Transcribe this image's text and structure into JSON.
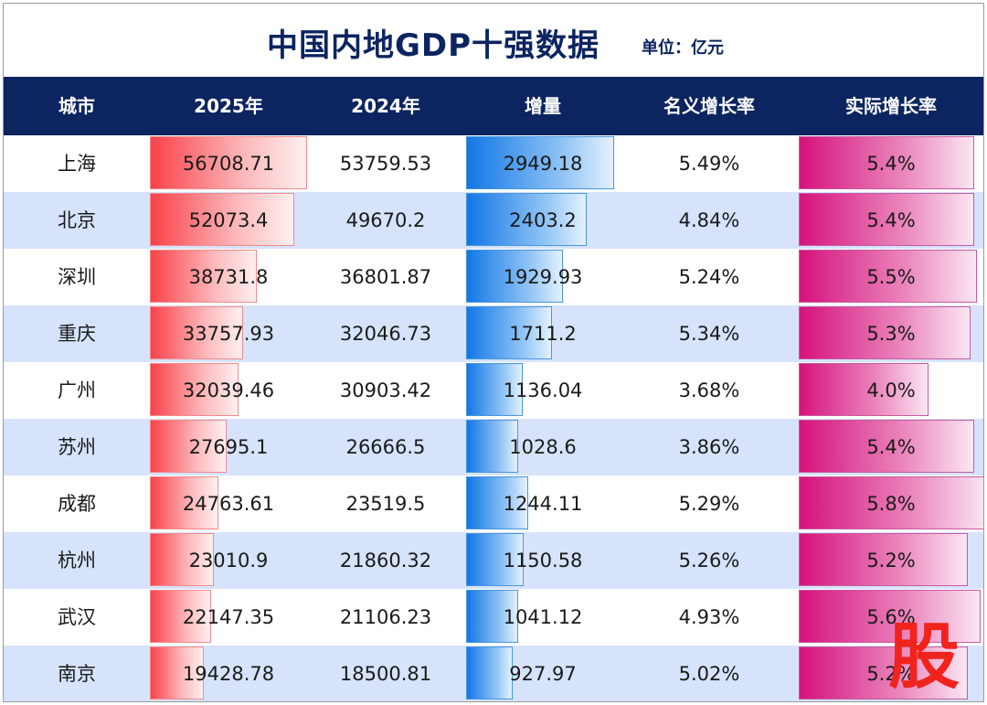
{
  "header": {
    "title": "中国内地GDP十强数据",
    "unit": "单位：亿元"
  },
  "watermark": "股",
  "chart_data": {
    "type": "table",
    "columns": [
      "城市",
      "2025年",
      "2024年",
      "增量",
      "名义增长率",
      "实际增长率"
    ],
    "rows": [
      {
        "city": "上海",
        "gdp2025": "56708.71",
        "gdp2024": "53759.53",
        "increase": "2949.18",
        "nominal": "5.49%",
        "real": "5.4%"
      },
      {
        "city": "北京",
        "gdp2025": "52073.4",
        "gdp2024": "49670.2",
        "increase": "2403.2",
        "nominal": "4.84%",
        "real": "5.4%"
      },
      {
        "city": "深圳",
        "gdp2025": "38731.8",
        "gdp2024": "36801.87",
        "increase": "1929.93",
        "nominal": "5.24%",
        "real": "5.5%"
      },
      {
        "city": "重庆",
        "gdp2025": "33757.93",
        "gdp2024": "32046.73",
        "increase": "1711.2",
        "nominal": "5.34%",
        "real": "5.3%"
      },
      {
        "city": "广州",
        "gdp2025": "32039.46",
        "gdp2024": "30903.42",
        "increase": "1136.04",
        "nominal": "3.68%",
        "real": "4.0%"
      },
      {
        "city": "苏州",
        "gdp2025": "27695.1",
        "gdp2024": "26666.5",
        "increase": "1028.6",
        "nominal": "3.86%",
        "real": "5.4%"
      },
      {
        "city": "成都",
        "gdp2025": "24763.61",
        "gdp2024": "23519.5",
        "increase": "1244.11",
        "nominal": "5.29%",
        "real": "5.8%"
      },
      {
        "city": "杭州",
        "gdp2025": "23010.9",
        "gdp2024": "21860.32",
        "increase": "1150.58",
        "nominal": "5.26%",
        "real": "5.2%"
      },
      {
        "city": "武汉",
        "gdp2025": "22147.35",
        "gdp2024": "21106.23",
        "increase": "1041.12",
        "nominal": "4.93%",
        "real": "5.6%"
      },
      {
        "city": "南京",
        "gdp2025": "19428.78",
        "gdp2024": "18500.81",
        "increase": "927.97",
        "nominal": "5.02%",
        "real": "5.2%"
      }
    ],
    "data_bar_colors": {
      "gdp2025": "#f9424a",
      "increase": "#1277e6",
      "real": "#d5127c"
    }
  }
}
